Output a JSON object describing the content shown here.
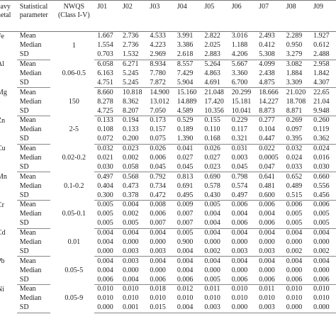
{
  "headers": {
    "metal": "eavy\nnetal",
    "param": "Statistical\nparameter",
    "nwqs": "NWQS\n(Class I-V)",
    "sites": [
      "J01",
      "J02",
      "J03",
      "J04",
      "J05",
      "J06",
      "J07",
      "J08",
      "J09"
    ]
  },
  "groups": [
    {
      "metal": "Fe",
      "nwqs": "1",
      "rows": [
        {
          "param": "Mean",
          "values": [
            "1.667",
            "2.736",
            "4.533",
            "3.991",
            "2.822",
            "3.016",
            "2.493",
            "2.289",
            "1.927"
          ]
        },
        {
          "param": "Median",
          "values": [
            "1.554",
            "2.736",
            "4.223",
            "3.386",
            "2.025",
            "1.188",
            "0.412",
            "0.950",
            "0.612"
          ]
        },
        {
          "param": "SD",
          "values": [
            "0.703",
            "1.532",
            "2.969",
            "2.618",
            "2.883",
            "4.206",
            "5.308",
            "3.279",
            "2.488"
          ]
        }
      ]
    },
    {
      "metal": "Al",
      "nwqs": "0.06-0.5",
      "rows": [
        {
          "param": "Mean",
          "values": [
            "6.058",
            "6.271",
            "8.934",
            "8.557",
            "5.264",
            "5.667",
            "4.099",
            "3.082",
            "2.958"
          ]
        },
        {
          "param": "Median",
          "values": [
            "6.163",
            "5.245",
            "7.780",
            "7.429",
            "4.863",
            "3.360",
            "2.438",
            "1.884",
            "1.842"
          ]
        },
        {
          "param": "SD",
          "values": [
            "4.751",
            "5.245",
            "7.872",
            "5.904",
            "4.691",
            "6.700",
            "4.875",
            "3.309",
            "4.307"
          ]
        }
      ]
    },
    {
      "metal": "Mg",
      "nwqs": "150",
      "rows": [
        {
          "param": "Mean",
          "values": [
            "8.660",
            "10.818",
            "14.900",
            "15.160",
            "21.048",
            "20.299",
            "18.666",
            "21.020",
            "22.65"
          ]
        },
        {
          "param": "Median",
          "values": [
            "8.278",
            "8.362",
            "13.012",
            "14.889",
            "17.420",
            "15.181",
            "14.227",
            "18.708",
            "21.04"
          ]
        },
        {
          "param": "SD",
          "values": [
            "4.725",
            "8.207",
            "7.050",
            "4.589",
            "10.356",
            "10.041",
            "8.873",
            "8.871",
            "9.948"
          ]
        }
      ]
    },
    {
      "metal": "Zn",
      "nwqs": "2-5",
      "rows": [
        {
          "param": "Mean",
          "values": [
            "0.133",
            "0.194",
            "0.173",
            "0.529",
            "0.155",
            "0.229",
            "0.277",
            "0.269",
            "0.260"
          ]
        },
        {
          "param": "Median",
          "values": [
            "0.108",
            "0.133",
            "0.157",
            "0.189",
            "0.110",
            "0.117",
            "0.104",
            "0.097",
            "0.119"
          ]
        },
        {
          "param": "SD",
          "values": [
            "0.072",
            "0.200",
            "0.075",
            "1.390",
            "0.168",
            "0.321",
            "0.447",
            "0.395",
            "0.362"
          ]
        }
      ]
    },
    {
      "metal": "Cu",
      "nwqs": "0.02-0.2",
      "rows": [
        {
          "param": "Mean",
          "values": [
            "0.032",
            "0.023",
            "0.026",
            "0.041",
            "0.026",
            "0.031",
            "0.022",
            "0.032",
            "0.024"
          ]
        },
        {
          "param": "Median",
          "values": [
            "0.021",
            "0.002",
            "0.006",
            "0.027",
            "0.027",
            "0.003",
            "0.0005",
            "0.024",
            "0.016"
          ]
        },
        {
          "param": "SD",
          "values": [
            "0.030",
            "0.058",
            "0.045",
            "0.045",
            "0.023",
            "0.045",
            "0.047",
            "0.033",
            "0.030"
          ]
        }
      ]
    },
    {
      "metal": "Mn",
      "nwqs": "0.1-0.2",
      "rows": [
        {
          "param": "Mean",
          "values": [
            "0.497",
            "0.568",
            "0.792",
            "0.813",
            "0.690",
            "0.798",
            "0.641",
            "0.652",
            "0.660"
          ]
        },
        {
          "param": "Median",
          "values": [
            "0.404",
            "0.473",
            "0.734",
            "0.691",
            "0.578",
            "0.574",
            "0.481",
            "0.489",
            "0.556"
          ]
        },
        {
          "param": "SD",
          "values": [
            "0.300",
            "0.378",
            "0.472",
            "0.495",
            "0.430",
            "0.497",
            "0.600",
            "0.515",
            "0.456"
          ]
        }
      ]
    },
    {
      "metal": "Cr",
      "nwqs": "0.05-0.1",
      "rows": [
        {
          "param": "Mean",
          "values": [
            "0.005",
            "0.004",
            "0.008",
            "0.009",
            "0.005",
            "0.006",
            "0.006",
            "0.006",
            "0.006"
          ]
        },
        {
          "param": "Median",
          "values": [
            "0.005",
            "0.002",
            "0.006",
            "0.007",
            "0.004",
            "0.004",
            "0.004",
            "0.005",
            "0.005"
          ]
        },
        {
          "param": "SD",
          "values": [
            "0.005",
            "0.005",
            "0.007",
            "0.007",
            "0.004",
            "0.006",
            "0.006",
            "0.005",
            "0.005"
          ]
        }
      ]
    },
    {
      "metal": "Cd",
      "nwqs": "0.01",
      "rows": [
        {
          "param": "Mean",
          "values": [
            "0.004",
            "0.004",
            "0.004",
            "0.005",
            "0.004",
            "0.004",
            "0.004",
            "0.004",
            "0.004"
          ]
        },
        {
          "param": "Median",
          "values": [
            "0.004",
            "0.000",
            "0.000",
            "0.900",
            "0.000",
            "0.000",
            "0.000",
            "0.000",
            "0.000"
          ]
        },
        {
          "param": "SD",
          "values": [
            "0.000",
            "0.003",
            "0.003",
            "0.004",
            "0.002",
            "0.003",
            "0.003",
            "0.002",
            "0.002"
          ]
        }
      ]
    },
    {
      "metal": "Pb",
      "nwqs": "0.05-5",
      "rows": [
        {
          "param": "Mean",
          "values": [
            "0.004",
            "0.003",
            "0.004",
            "0.004",
            "0.004",
            "0.004",
            "0.004",
            "0.004",
            "0.004"
          ]
        },
        {
          "param": "Median",
          "values": [
            "0.004",
            "0.000",
            "0.000",
            "0.004",
            "0.000",
            "0.000",
            "0.000",
            "0.000",
            "0.000"
          ]
        },
        {
          "param": "SD",
          "values": [
            "0.006",
            "0.004",
            "0.006",
            "0.006",
            "0.005",
            "0.006",
            "0.006",
            "0.006",
            "0.006"
          ]
        }
      ]
    },
    {
      "metal": "Ni",
      "nwqs": "0.05-9",
      "rows": [
        {
          "param": "Mean",
          "values": [
            "0.010",
            "0.010",
            "0.018",
            "0.012",
            "0.011",
            "0.010",
            "0.011",
            "0.010",
            "0.010"
          ]
        },
        {
          "param": "Median",
          "values": [
            "0.010",
            "0.010",
            "0.010",
            "0.010",
            "0.010",
            "0.010",
            "0.010",
            "0.010",
            "0.010"
          ]
        },
        {
          "param": "SD",
          "values": [
            "0.000",
            "0.001",
            "0.015",
            "0.004",
            "0.003",
            "0.000",
            "0.003",
            "0.000",
            "0.000"
          ]
        }
      ]
    }
  ]
}
